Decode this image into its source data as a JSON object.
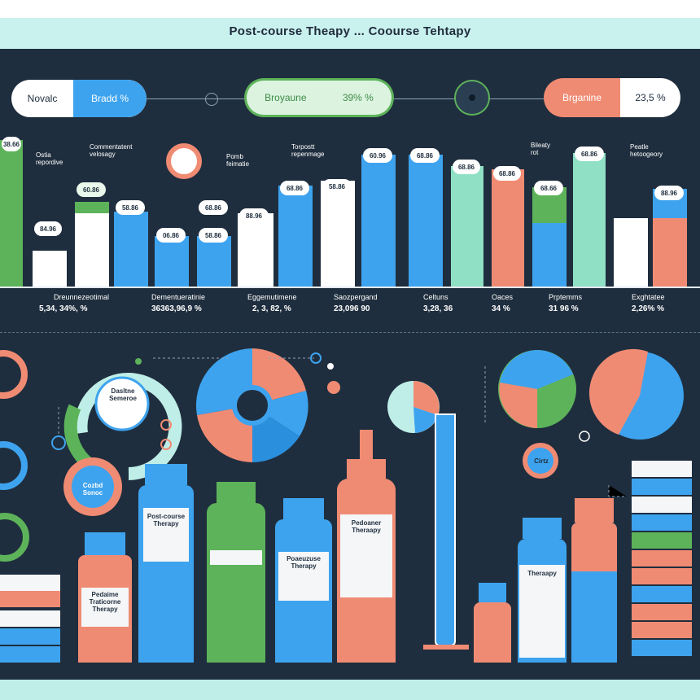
{
  "title": "Post-course Theapy ... Coourse Tehtapy",
  "pills": [
    {
      "left": "Novalc",
      "right": "Bradd %",
      "left_color": "#ffffff",
      "right_color": "#3ea3ee"
    },
    {
      "left": "Broyaune",
      "right": "39% %",
      "left_color": "#5db35a",
      "right_color": "#5db35a"
    },
    {
      "left": "Brganine",
      "right": "23,5 %",
      "left_color": "#f08b73",
      "right_color": "#ffffff"
    }
  ],
  "bar_labels": [
    {
      "text": "Ostia\nrepordive"
    },
    {
      "text": "Commentatent\nvelosagy"
    },
    {
      "text": "Pomb\nfeimatie"
    },
    {
      "text": "Torpostt\nrepenmage"
    },
    {
      "text": "Bileaty\nrot"
    },
    {
      "text": "Peatle\nhetoogeory"
    }
  ],
  "bar_tags": [
    "38.66",
    "84.96",
    "60.86",
    "58.86",
    "06.86",
    "58.86",
    "68.86",
    "88.96",
    "68.86",
    "58.86",
    "60.96",
    "68.86",
    "68.86",
    "68.86",
    "68.66",
    "68.86",
    "88.96"
  ],
  "stats": [
    {
      "name": "Dreunnezeotimal",
      "value": "5,34, 34%, %"
    },
    {
      "name": "Dementueratinie",
      "value": "36363,96,9 %"
    },
    {
      "name": "Eggemutimene",
      "value": "2, 3, 82, %"
    },
    {
      "name": "Saozpergand",
      "value": "23,096 90"
    },
    {
      "name": "Celtuns",
      "value": "3,28, 36"
    },
    {
      "name": "Oaces",
      "value": "34 %"
    },
    {
      "name": "Prptemms",
      "value": "31 96 %"
    },
    {
      "name": "Exghtatee",
      "value": "2,26% %"
    }
  ],
  "bottle_labels": [
    "Pedaime\nTraticorne\nTherapy",
    "Post-course\nTherapy",
    "Poaeuzuse\nTherapy",
    "Pedoaner\nTheraapy",
    "Theraapy"
  ],
  "circle_badges": [
    "Dasltne\nSemeroe",
    "Cozbd\nSonoc",
    "Cirtz"
  ],
  "colors": {
    "blue": "#3ea3ee",
    "green": "#5db35a",
    "coral": "#f08b73",
    "mint": "#8fe0c4",
    "navy": "#1f2e3e"
  }
}
